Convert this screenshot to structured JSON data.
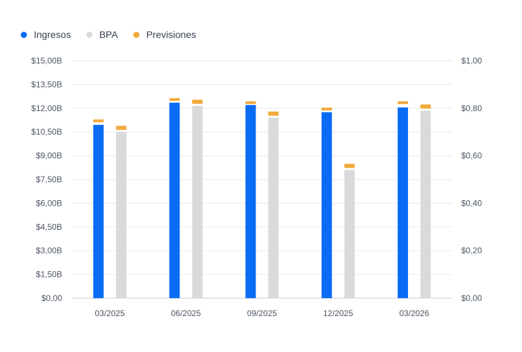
{
  "legend": [
    {
      "label": "Ingresos",
      "color": "#0a6cf5",
      "icon": "dot-icon"
    },
    {
      "label": "BPA",
      "color": "#d8dadc",
      "icon": "dot-icon"
    },
    {
      "label": "Previsiones",
      "color": "#f2a93b",
      "icon": "dot-icon"
    }
  ],
  "chart_data": {
    "type": "bar",
    "categories": [
      "03/2025",
      "06/2025",
      "09/2025",
      "12/2025",
      "03/2026"
    ],
    "left_axis": {
      "ylim": [
        0,
        15
      ],
      "ticks": [
        "$0,00",
        "$1,50B",
        "$3,00B",
        "$4,50B",
        "$6,00B",
        "$7,50B",
        "$9,00B",
        "$10,50B",
        "$12,00B",
        "$13,50B",
        "$15,00B"
      ]
    },
    "right_axis": {
      "ylim": [
        0,
        1
      ],
      "ticks": [
        "$0,00",
        "$0,20",
        "$0,40",
        "$0,60",
        "$0,80",
        "$1,00"
      ]
    },
    "series": [
      {
        "name": "Ingresos",
        "axis": "left",
        "unit": "B",
        "color": "#0a6cf5",
        "values": [
          10.95,
          12.35,
          12.2,
          11.75,
          12.05
        ]
      },
      {
        "name": "Previsiones",
        "axis": "left",
        "unit": "B",
        "color": "#f2a93b",
        "values": [
          11.2,
          12.55,
          12.35,
          11.95,
          12.35
        ]
      },
      {
        "name": "BPA",
        "axis": "right",
        "color": "#d8dadc",
        "values": [
          0.7,
          0.81,
          0.76,
          0.54,
          0.79
        ]
      },
      {
        "name": "Previsiones",
        "axis": "right",
        "color": "#f2a93b",
        "values": [
          0.72,
          0.83,
          0.78,
          0.56,
          0.81
        ]
      }
    ],
    "grid": true,
    "legend_position": "top-left"
  }
}
